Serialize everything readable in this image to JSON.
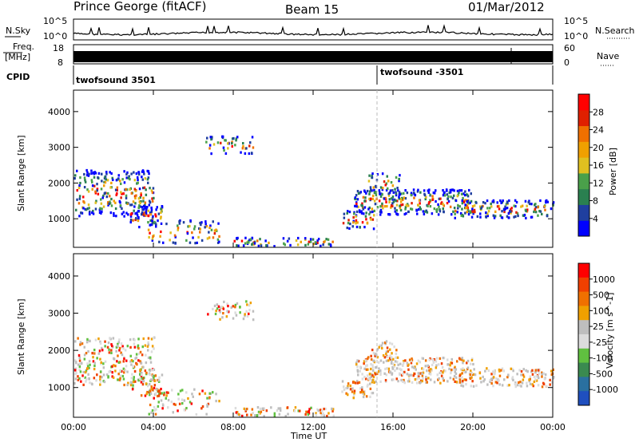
{
  "header": {
    "station": "Prince George (fitACF)",
    "beam": "Beam 15",
    "date": "01/Mar/2012"
  },
  "left_labels": {
    "nsky": "N.Sky",
    "freq": "Freq.",
    "freq_unit": "[MHz]",
    "cpid": "CPID"
  },
  "right_labels": {
    "nsearch": "N.Search",
    "nave": "Nave"
  },
  "noise_panel": {
    "left_ticks": [
      "10^5",
      "10^0"
    ],
    "right_ticks": [
      "10^5",
      "10^0"
    ]
  },
  "freq_panel": {
    "left_ticks": [
      "18",
      "8"
    ],
    "right_ticks": [
      "60",
      "0"
    ]
  },
  "cpid_panel": {
    "segments": [
      {
        "label": "twofsound 3501",
        "start_hour": 0
      },
      {
        "label": "twofsound -3501",
        "start_hour": 15.2
      }
    ]
  },
  "colors": {
    "power": [
      "#0000ff",
      "#1f3f9f",
      "#2a8050",
      "#4aa04a",
      "#e0c020",
      "#f0a000",
      "#f07000",
      "#e02000",
      "#ff0000"
    ],
    "velocity": [
      "#ff0000",
      "#f04000",
      "#f07000",
      "#f0a000",
      "#bebebe",
      "#dcdcdc",
      "#60c040",
      "#3a8a50",
      "#2a70a0",
      "#1f4fbf"
    ]
  },
  "chart_data": [
    {
      "type": "heatmap",
      "title": "",
      "xlabel": "Time UT",
      "ylabel": "Slant Range [km]",
      "x_ticks": [
        "00:00",
        "04:00",
        "08:00",
        "12:00",
        "16:00",
        "20:00",
        "00:00"
      ],
      "y_ticks": [
        "1000",
        "2000",
        "3000",
        "4000"
      ],
      "xlim": [
        0,
        24
      ],
      "ylim": [
        200,
        4600
      ],
      "colorbar": {
        "label": "Power [dB]",
        "ticks": [
          "4",
          "8",
          "12",
          "16",
          "20",
          "24",
          "28"
        ],
        "range": [
          0,
          30
        ]
      }
    },
    {
      "type": "heatmap",
      "title": "",
      "xlabel": "Time UT",
      "ylabel": "Slant Range [km]",
      "x_ticks": [
        "00:00",
        "04:00",
        "08:00",
        "12:00",
        "16:00",
        "20:00",
        "00:00"
      ],
      "y_ticks": [
        "1000",
        "2000",
        "3000",
        "4000"
      ],
      "xlim": [
        0,
        24
      ],
      "ylim": [
        200,
        4600
      ],
      "colorbar": {
        "label": "Velocity [m s^-1]",
        "ticks": [
          "1000",
          "500",
          "100",
          "25",
          "-25",
          "-100",
          "-500",
          "-1000"
        ]
      }
    }
  ],
  "time_axis_label": "Time UT"
}
